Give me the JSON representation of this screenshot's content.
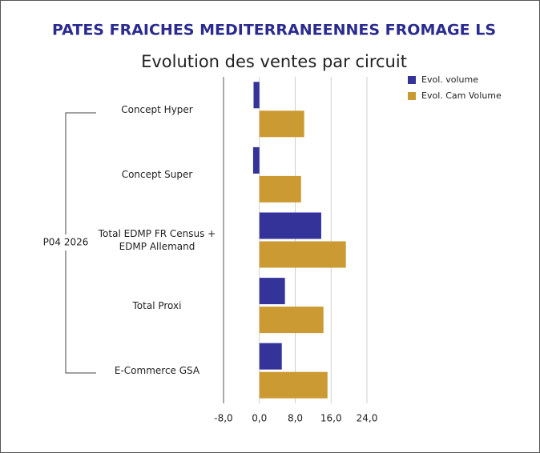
{
  "chart_data": {
    "type": "hbar",
    "title": "PATES FRAICHES MEDITERRANEENNES FROMAGE LS",
    "subtitle": "Evolution des ventes par circuit",
    "group": "P04 2026",
    "categories": [
      "Concept Hyper",
      "Concept Super",
      "Total EDMP FR Census + EDMP Allemand",
      "Total Proxi",
      "E-Commerce GSA"
    ],
    "series": [
      {
        "name": "Evol. volume",
        "color": "#33339a",
        "values": [
          -1.3,
          -1.4,
          13.8,
          5.7,
          5.0
        ]
      },
      {
        "name": "Evol. Cam Volume",
        "color": "#cc9a33",
        "values": [
          10.0,
          9.3,
          19.3,
          14.3,
          15.2
        ]
      }
    ],
    "xlim": [
      -8,
      24
    ],
    "xticks": [
      {
        "value": -8,
        "label": "-8,0"
      },
      {
        "value": 0,
        "label": "0,0"
      },
      {
        "value": 8,
        "label": "8,0"
      },
      {
        "value": 16,
        "label": "16,0"
      },
      {
        "value": 24,
        "label": "24,0"
      }
    ],
    "grid": true
  }
}
